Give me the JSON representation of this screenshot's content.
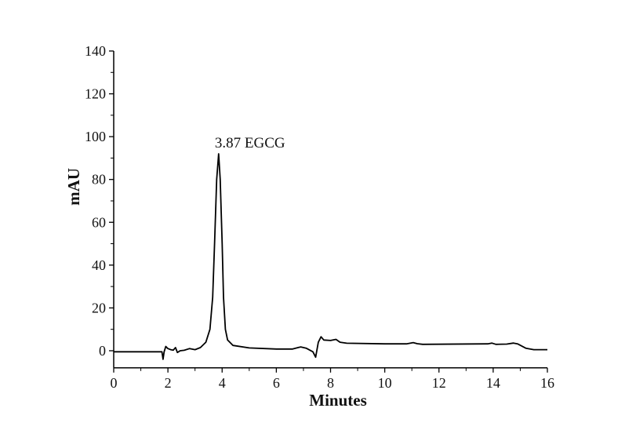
{
  "chart_data": {
    "type": "line",
    "title": "",
    "xlabel": "Minutes",
    "ylabel": "mAU",
    "xlim": [
      0,
      16
    ],
    "ylim": [
      -8,
      140
    ],
    "xticks": [
      0,
      2,
      4,
      6,
      8,
      10,
      12,
      14,
      16
    ],
    "yticks": [
      0,
      20,
      40,
      60,
      80,
      100,
      120,
      140
    ],
    "grid": false,
    "line_color": "#000000",
    "annotations": [
      {
        "text": "3.87 EGCG",
        "x": 3.87,
        "y": 92
      }
    ],
    "series": [
      {
        "x": [
          0,
          1.5,
          1.78,
          1.82,
          1.86,
          1.92,
          2.0,
          2.1,
          2.2,
          2.28,
          2.35,
          2.45,
          2.6,
          2.8,
          3.0,
          3.2,
          3.4,
          3.55,
          3.65,
          3.72,
          3.8,
          3.87,
          3.93,
          4.0,
          4.05,
          4.12,
          4.2,
          4.4,
          5.0,
          6.0,
          6.6,
          6.9,
          7.1,
          7.35,
          7.45,
          7.55,
          7.65,
          7.75,
          8.0,
          8.2,
          8.35,
          8.6,
          10.0,
          10.8,
          11.05,
          11.2,
          11.4,
          13.8,
          13.95,
          14.1,
          14.5,
          14.75,
          14.9,
          15.2,
          15.5,
          16.0
        ],
        "y": [
          -0.5,
          -0.5,
          -0.5,
          -4,
          -0.5,
          2,
          1,
          0.5,
          0.3,
          1.5,
          -0.8,
          0,
          0.2,
          1,
          0.5,
          1.5,
          4,
          10,
          25,
          50,
          80,
          92,
          80,
          50,
          25,
          10,
          5,
          2.5,
          1.3,
          0.8,
          0.8,
          1.8,
          1.2,
          -0.5,
          -3,
          4,
          6.5,
          5,
          4.8,
          5.3,
          4,
          3.5,
          3.2,
          3.2,
          3.8,
          3.3,
          3,
          3.2,
          3.6,
          3,
          3.1,
          3.6,
          3.2,
          1.2,
          0.5,
          0.5
        ]
      }
    ]
  }
}
